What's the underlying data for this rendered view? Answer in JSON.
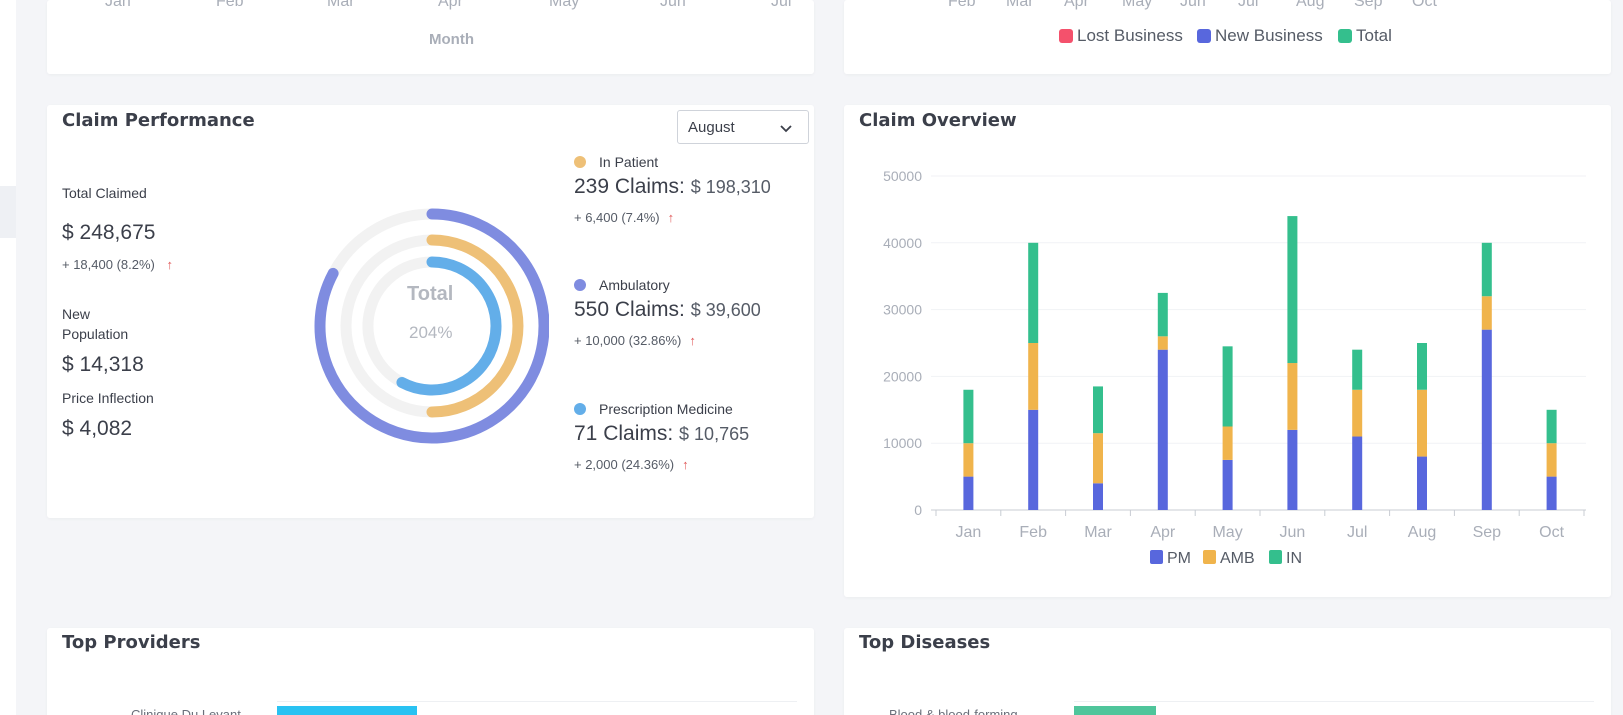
{
  "colors": {
    "lost": "#f4516c",
    "new": "#5867dd",
    "total": "#34bf8d",
    "pm": "#5867dd",
    "amb": "#f0b44c",
    "in": "#34bf8d",
    "donut_outer": "#7f8ce0",
    "donut_mid": "#eec077",
    "donut_inner": "#63aee9",
    "track": "#f2f2f2",
    "provider_bar": "#29c2f2",
    "disease_bar": "#4fc59b"
  },
  "top_left_chart": {
    "months": [
      "Jan",
      "Feb",
      "Mar",
      "Apr",
      "May",
      "Jun",
      "Jul"
    ],
    "xlabel": "Month"
  },
  "top_right_chart": {
    "months": [
      "Feb",
      "Mar",
      "Apr",
      "May",
      "Jun",
      "Jul",
      "Aug",
      "Sep",
      "Oct"
    ],
    "legend": [
      "Lost Business",
      "New Business",
      "Total"
    ]
  },
  "claim_performance": {
    "title": "Claim Performance",
    "dropdown_value": "August",
    "total_claimed_label": "Total Claimed",
    "total_claimed_value": "$ 248,675",
    "total_claimed_change": "+ 18,400 (8.2%)",
    "new_population_label_1": "New",
    "new_population_label_2": "Population",
    "new_population_value": "$ 14,318",
    "price_inflection_label": "Price Inflection",
    "price_inflection_value": "$ 4,082",
    "donut_center_label": "Total",
    "donut_center_value": "204%",
    "items": [
      {
        "name": "In Patient",
        "claims": "239 Claims:",
        "amount": "$ 198,310",
        "change": "+ 6,400 (7.4%)",
        "color": "#eec077",
        "fraction": 0.5
      },
      {
        "name": "Ambulatory",
        "claims": "550 Claims:",
        "amount": "$ 39,600",
        "change": "+ 10,000 (32.86%)",
        "color": "#7f8ce0",
        "fraction": 0.6
      },
      {
        "name": "Prescription Medicine",
        "claims": "71 Claims:",
        "amount": "$ 10,765",
        "change": "+ 2,000 (24.36%)",
        "color": "#63aee9",
        "fraction": 0.45
      }
    ]
  },
  "claim_overview": {
    "title": "Claim Overview"
  },
  "chart_data": {
    "type": "bar",
    "title": "Claim Overview",
    "stacked": true,
    "categories": [
      "Jan",
      "Feb",
      "Mar",
      "Apr",
      "May",
      "Jun",
      "Jul",
      "Aug",
      "Sep",
      "Oct"
    ],
    "series": [
      {
        "name": "PM",
        "values": [
          5000,
          15000,
          4000,
          24000,
          7500,
          12000,
          11000,
          8000,
          27000,
          5000
        ]
      },
      {
        "name": "AMB",
        "values": [
          5000,
          10000,
          7500,
          2000,
          5000,
          10000,
          7000,
          10000,
          5000,
          5000
        ]
      },
      {
        "name": "IN",
        "values": [
          8000,
          15000,
          7000,
          6500,
          12000,
          22000,
          6000,
          7000,
          8000,
          5000
        ]
      }
    ],
    "yticks": [
      0,
      10000,
      20000,
      30000,
      40000,
      50000
    ],
    "ylim": [
      0,
      50000
    ],
    "grid": true,
    "legend_position": "bottom"
  },
  "top_providers": {
    "title": "Top Providers",
    "first_label": "Clinique Du Levant"
  },
  "top_diseases": {
    "title": "Top Diseases",
    "first_label": "Blood & blood-forming"
  }
}
